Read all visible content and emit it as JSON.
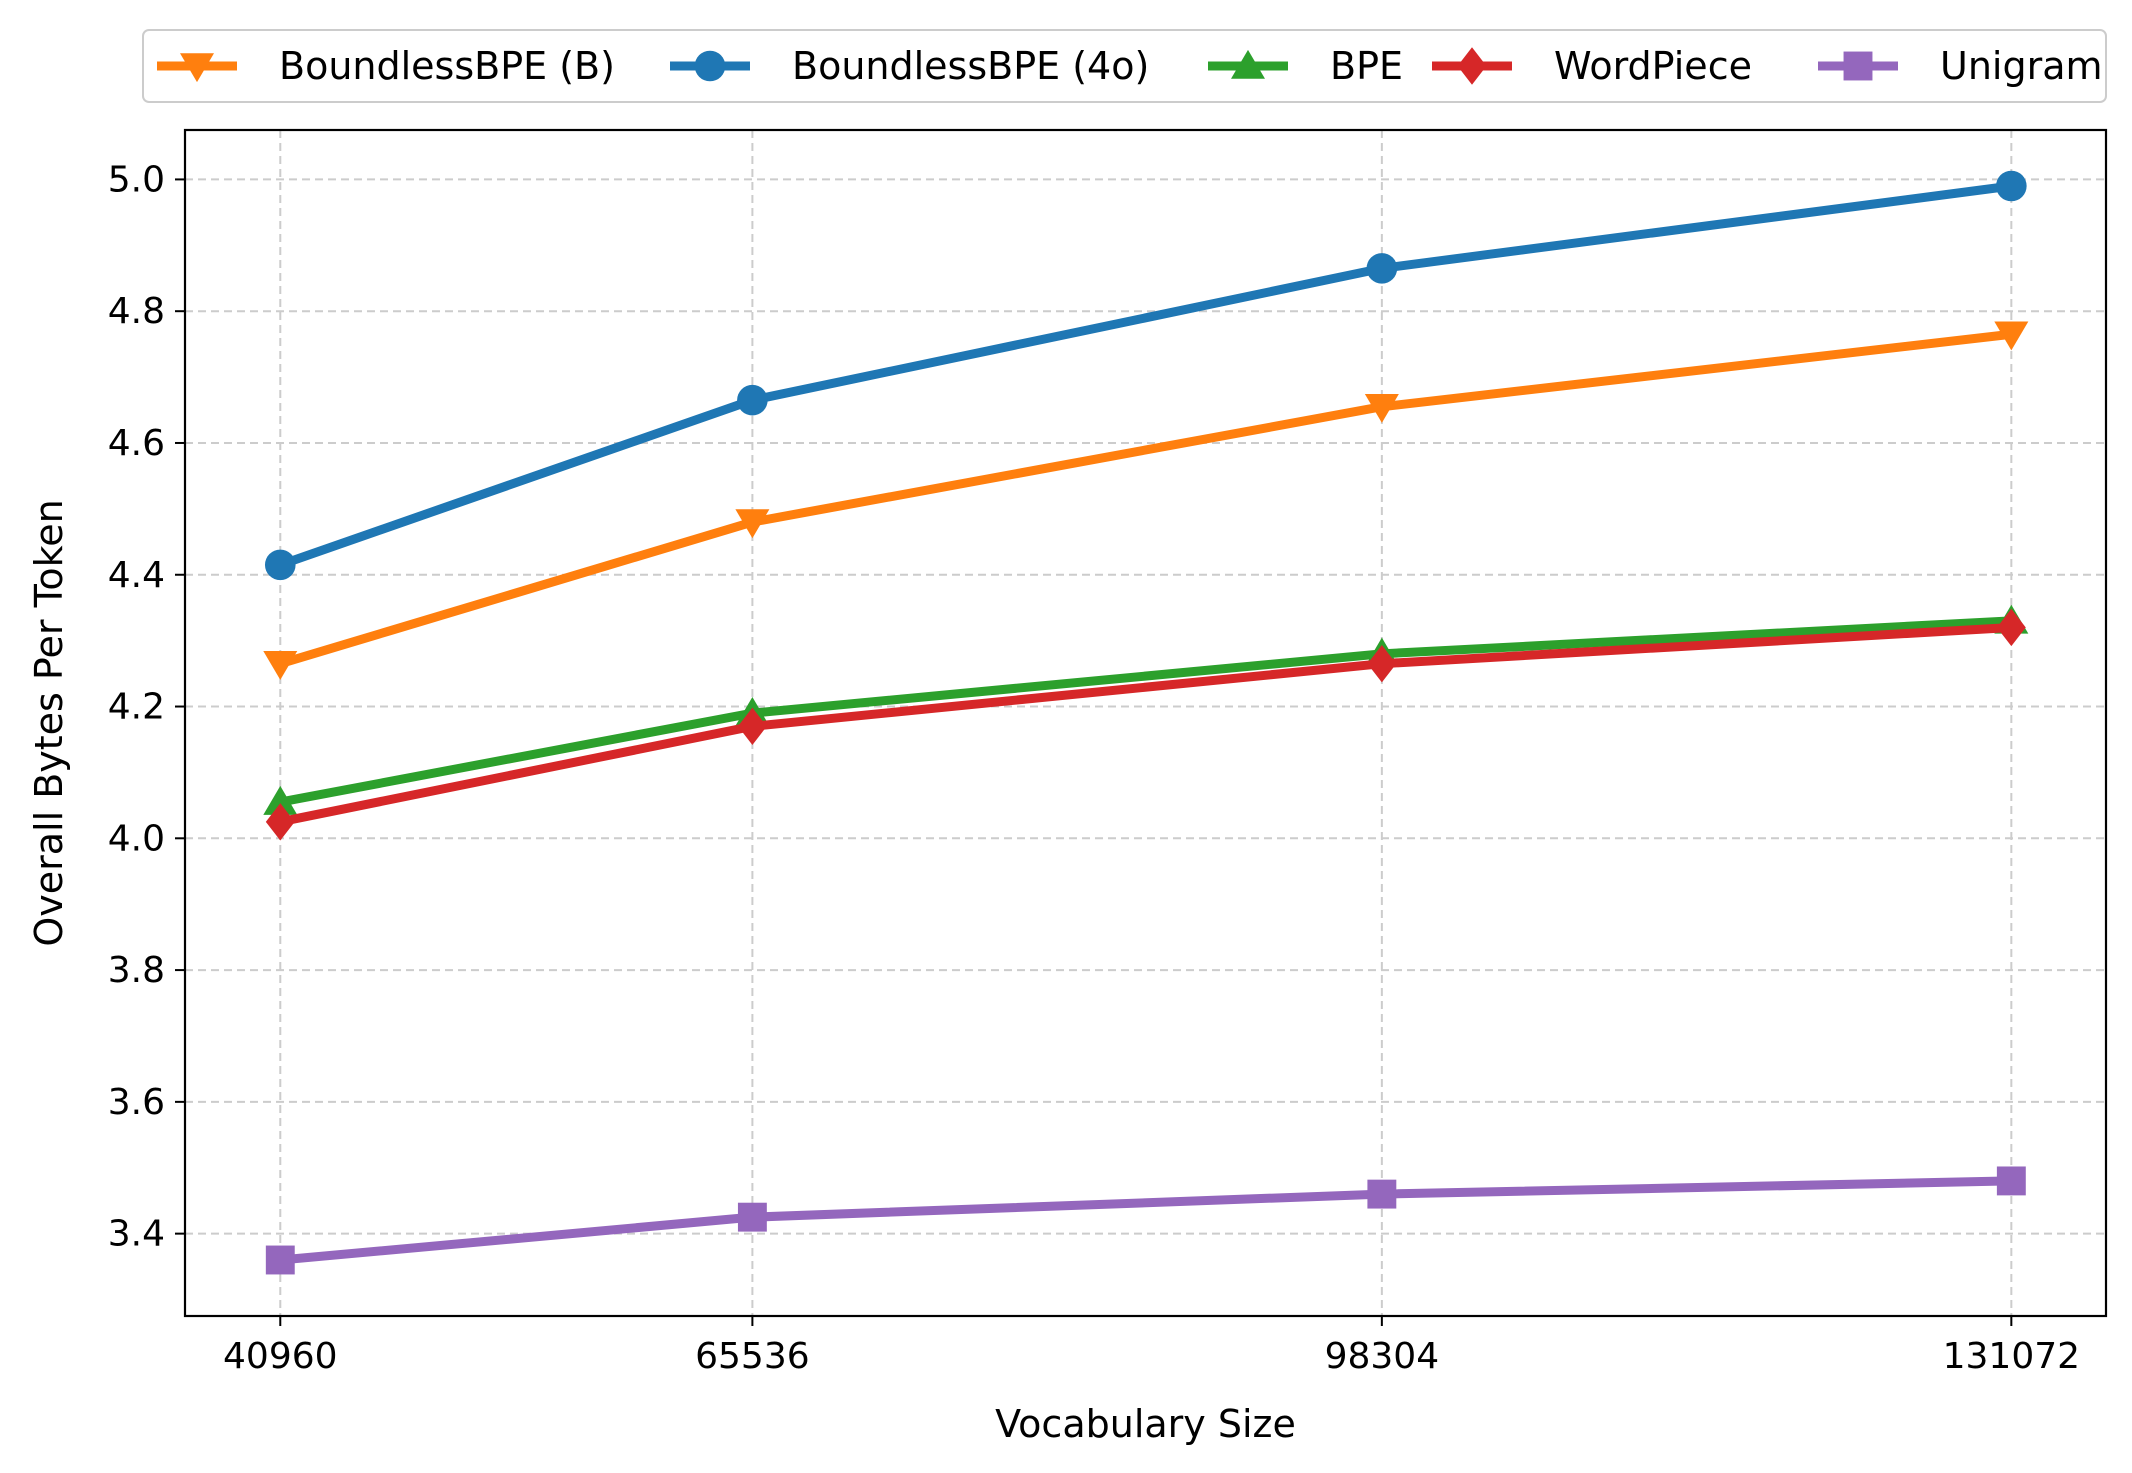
{
  "chart_data": {
    "type": "line",
    "title": "",
    "xlabel": "Vocabulary Size",
    "ylabel": "Overall Bytes Per Token",
    "x": [
      40960,
      65536,
      98304,
      131072
    ],
    "x_tick_labels": [
      "40960",
      "65536",
      "98304",
      "131072"
    ],
    "xlim": [
      36000,
      136000
    ],
    "ylim": [
      3.275,
      5.075
    ],
    "y_ticks": [
      3.4,
      3.6,
      3.8,
      4.0,
      4.2,
      4.4,
      4.6,
      4.8,
      5.0
    ],
    "y_tick_labels": [
      "3.4",
      "3.6",
      "3.8",
      "4.0",
      "4.2",
      "4.4",
      "4.6",
      "4.8",
      "5.0"
    ],
    "grid": true,
    "legend_placement": "top (above plot)",
    "series": [
      {
        "name": "BoundlessBPE (B)",
        "color": "#ff7f0e",
        "marker": "triangle-down",
        "x": [
          40960,
          65536,
          98304,
          131072
        ],
        "values": [
          4.265,
          4.48,
          4.655,
          4.765
        ]
      },
      {
        "name": "BoundlessBPE (4o)",
        "color": "#1f77b4",
        "marker": "circle",
        "x": [
          40960,
          65536,
          98304,
          131072
        ],
        "values": [
          4.415,
          4.665,
          4.865,
          4.99
        ]
      },
      {
        "name": "BPE",
        "color": "#2ca02c",
        "marker": "triangle-up",
        "x": [
          40960,
          65536,
          98304,
          131072
        ],
        "values": [
          4.055,
          4.19,
          4.28,
          4.33
        ]
      },
      {
        "name": "WordPiece",
        "color": "#d62728",
        "marker": "diamond",
        "x": [
          40960,
          65536,
          98304,
          131072
        ],
        "values": [
          4.025,
          4.17,
          4.265,
          4.32
        ]
      },
      {
        "name": "Unigram",
        "color": "#9467bd",
        "marker": "square",
        "x": [
          40960,
          65536,
          98304,
          131072
        ],
        "values": [
          3.36,
          3.425,
          3.46,
          3.48
        ]
      }
    ]
  }
}
